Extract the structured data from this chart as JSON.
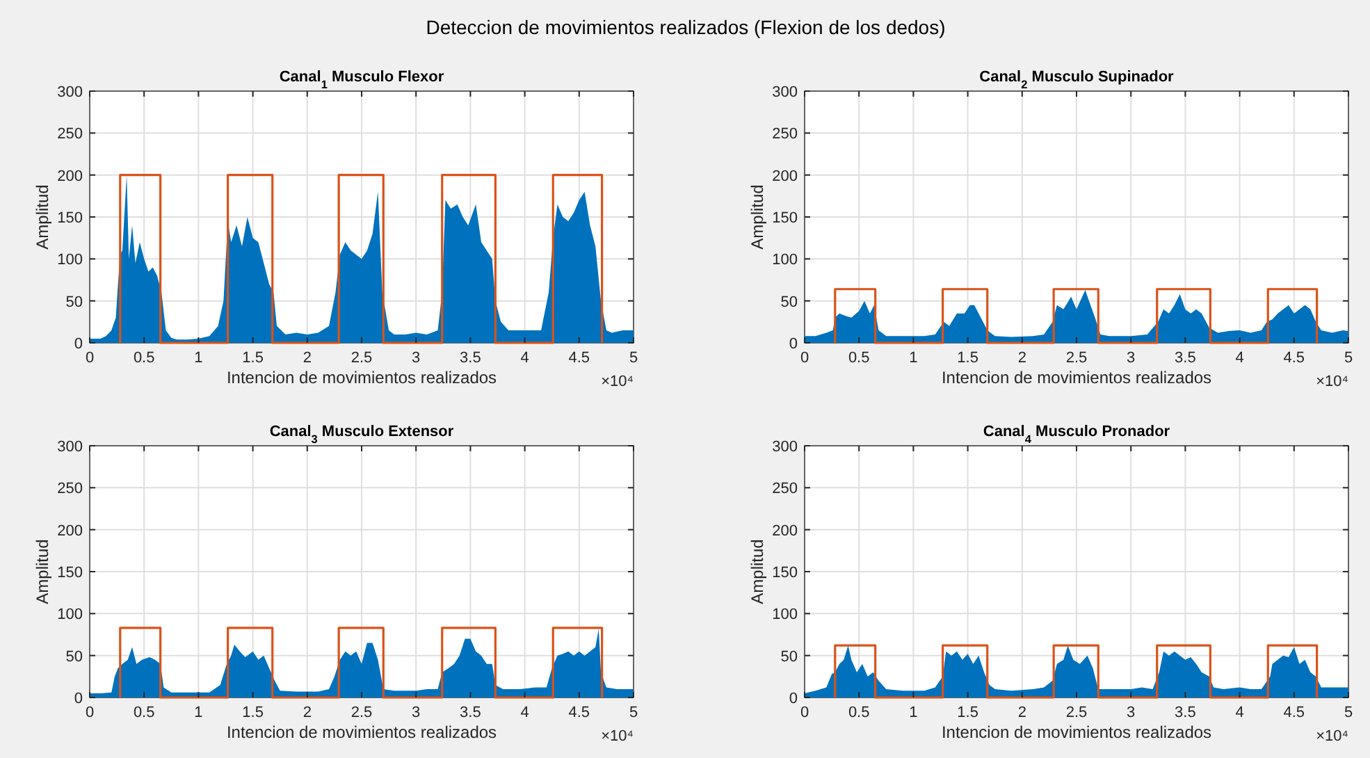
{
  "chart_data": [
    {
      "type": "area",
      "title": "Canal$_{1}$ Musculo Flexor",
      "xlabel": "Intencion de movimientos realizados",
      "ylabel": "Amplitud",
      "annotations": [
        "Deteccion de movimientos realizados (Flexion de los dedos)",
        "×10⁴"
      ],
      "xlim": [
        0,
        5
      ],
      "xticks": [
        0,
        0.5,
        1,
        1.5,
        2,
        2.5,
        3,
        3.5,
        4,
        4.5,
        5
      ],
      "ylim": [
        0,
        300
      ],
      "yticks": [
        0,
        50,
        100,
        150,
        200,
        250,
        300
      ],
      "grid": true,
      "series": [
        {
          "color": "#0072bd",
          "x": [
            0,
            0.1,
            0.15,
            0.2,
            0.24,
            0.26,
            0.28,
            0.3,
            0.34,
            0.36,
            0.39,
            0.42,
            0.46,
            0.5,
            0.54,
            0.58,
            0.62,
            0.66,
            0.7,
            0.75,
            0.8,
            0.9,
            1,
            1.1,
            1.18,
            1.23,
            1.27,
            1.3,
            1.35,
            1.4,
            1.45,
            1.5,
            1.55,
            1.6,
            1.65,
            1.69,
            1.72,
            1.8,
            1.9,
            2,
            2.1,
            2.2,
            2.26,
            2.3,
            2.35,
            2.4,
            2.45,
            2.5,
            2.55,
            2.6,
            2.65,
            2.69,
            2.75,
            2.8,
            2.9,
            3,
            3.1,
            3.2,
            3.24,
            3.27,
            3.32,
            3.38,
            3.43,
            3.48,
            3.55,
            3.6,
            3.65,
            3.7,
            3.73,
            3.78,
            3.85,
            3.95,
            4.05,
            4.15,
            4.22,
            4.26,
            4.3,
            4.35,
            4.4,
            4.45,
            4.5,
            4.55,
            4.6,
            4.65,
            4.7,
            4.75,
            4.8,
            4.9,
            5
          ],
          "values": [
            5,
            5,
            8,
            15,
            30,
            70,
            105,
            110,
            200,
            100,
            140,
            95,
            120,
            100,
            85,
            90,
            80,
            60,
            15,
            6,
            4,
            4,
            5,
            8,
            20,
            50,
            145,
            120,
            140,
            115,
            150,
            125,
            120,
            95,
            70,
            60,
            20,
            10,
            12,
            10,
            12,
            20,
            60,
            105,
            120,
            110,
            105,
            100,
            110,
            130,
            180,
            60,
            15,
            10,
            10,
            12,
            10,
            15,
            60,
            170,
            160,
            165,
            150,
            140,
            165,
            120,
            110,
            100,
            50,
            25,
            15,
            15,
            15,
            15,
            60,
            125,
            165,
            150,
            145,
            155,
            170,
            180,
            140,
            115,
            50,
            15,
            12,
            15,
            15
          ]
        },
        {
          "type": "step",
          "color": "#d95319",
          "x": [
            0.28,
            0.28,
            0.65,
            1.27,
            1.68,
            2.29,
            2.7,
            3.24,
            3.73,
            4.26,
            4.71
          ],
          "values": [
            0,
            200,
            0,
            200,
            0,
            200,
            0,
            200,
            0,
            200,
            0
          ]
        }
      ]
    },
    {
      "type": "area",
      "title": "Canal$_{2}$ Musculo Supinador",
      "xlabel": "Intencion de movimientos realizados",
      "ylabel": "Amplitud",
      "annotations": [
        "×10⁴"
      ],
      "xlim": [
        0,
        5
      ],
      "xticks": [
        0,
        0.5,
        1,
        1.5,
        2,
        2.5,
        3,
        3.5,
        4,
        4.5,
        5
      ],
      "ylim": [
        0,
        300
      ],
      "yticks": [
        0,
        50,
        100,
        150,
        200,
        250,
        300
      ],
      "grid": true,
      "series": [
        {
          "color": "#0072bd",
          "x": [
            0,
            0.1,
            0.2,
            0.26,
            0.28,
            0.32,
            0.38,
            0.43,
            0.5,
            0.55,
            0.6,
            0.64,
            0.68,
            0.75,
            0.9,
            1.1,
            1.2,
            1.28,
            1.33,
            1.4,
            1.47,
            1.52,
            1.56,
            1.62,
            1.68,
            1.75,
            1.9,
            2.1,
            2.2,
            2.28,
            2.32,
            2.38,
            2.45,
            2.5,
            2.58,
            2.62,
            2.67,
            2.72,
            2.8,
            3,
            3.15,
            3.25,
            3.3,
            3.35,
            3.4,
            3.45,
            3.5,
            3.55,
            3.6,
            3.65,
            3.72,
            3.8,
            3.9,
            4,
            4.1,
            4.2,
            4.25,
            4.3,
            4.35,
            4.4,
            4.45,
            4.5,
            4.55,
            4.6,
            4.65,
            4.7,
            4.75,
            4.85,
            4.95,
            5
          ],
          "values": [
            8,
            8,
            12,
            15,
            30,
            35,
            32,
            30,
            38,
            50,
            35,
            45,
            15,
            8,
            8,
            8,
            10,
            25,
            20,
            35,
            35,
            45,
            45,
            30,
            15,
            8,
            7,
            8,
            10,
            25,
            45,
            40,
            55,
            40,
            63,
            48,
            30,
            10,
            8,
            8,
            10,
            25,
            40,
            35,
            45,
            58,
            40,
            35,
            40,
            35,
            18,
            12,
            14,
            15,
            12,
            15,
            25,
            28,
            35,
            40,
            45,
            35,
            40,
            45,
            40,
            25,
            15,
            12,
            15,
            14
          ]
        },
        {
          "type": "step",
          "color": "#d95319",
          "x": [
            0.28,
            0.28,
            0.65,
            1.27,
            1.68,
            2.29,
            2.7,
            3.24,
            3.73,
            4.26,
            4.71
          ],
          "values": [
            0,
            64,
            0,
            64,
            0,
            64,
            0,
            64,
            0,
            64,
            0
          ]
        }
      ]
    },
    {
      "type": "area",
      "title": "Canal$_{3}$ Musculo Extensor",
      "xlabel": "Intencion de movimientos realizados",
      "ylabel": "Amplitud",
      "annotations": [
        "×10⁴"
      ],
      "xlim": [
        0,
        5
      ],
      "xticks": [
        0,
        0.5,
        1,
        1.5,
        2,
        2.5,
        3,
        3.5,
        4,
        4.5,
        5
      ],
      "ylim": [
        0,
        300
      ],
      "yticks": [
        0,
        50,
        100,
        150,
        200,
        250,
        300
      ],
      "grid": true,
      "series": [
        {
          "color": "#0072bd",
          "x": [
            0,
            0.1,
            0.2,
            0.23,
            0.26,
            0.3,
            0.35,
            0.39,
            0.43,
            0.48,
            0.55,
            0.6,
            0.65,
            0.68,
            0.75,
            0.9,
            1.1,
            1.2,
            1.26,
            1.3,
            1.33,
            1.38,
            1.43,
            1.5,
            1.55,
            1.6,
            1.65,
            1.7,
            1.75,
            1.9,
            2.1,
            2.2,
            2.25,
            2.3,
            2.35,
            2.4,
            2.45,
            2.5,
            2.55,
            2.6,
            2.65,
            2.7,
            2.8,
            3,
            3.1,
            3.2,
            3.24,
            3.3,
            3.35,
            3.4,
            3.45,
            3.5,
            3.55,
            3.6,
            3.65,
            3.7,
            3.73,
            3.8,
            3.95,
            4.1,
            4.2,
            4.25,
            4.3,
            4.35,
            4.4,
            4.45,
            4.5,
            4.55,
            4.6,
            4.65,
            4.68,
            4.7,
            4.75,
            4.85,
            5
          ],
          "values": [
            5,
            5,
            6,
            25,
            35,
            40,
            45,
            60,
            40,
            45,
            48,
            45,
            40,
            12,
            6,
            6,
            6,
            15,
            40,
            50,
            63,
            55,
            48,
            55,
            45,
            50,
            35,
            20,
            8,
            7,
            7,
            10,
            25,
            45,
            55,
            50,
            55,
            40,
            65,
            65,
            45,
            10,
            8,
            8,
            10,
            10,
            30,
            35,
            40,
            50,
            70,
            70,
            55,
            50,
            40,
            40,
            15,
            10,
            10,
            12,
            12,
            35,
            50,
            52,
            55,
            50,
            55,
            50,
            55,
            60,
            82,
            30,
            12,
            10,
            10
          ]
        },
        {
          "type": "step",
          "color": "#d95319",
          "x": [
            0.28,
            0.28,
            0.65,
            1.27,
            1.68,
            2.29,
            2.7,
            3.24,
            3.73,
            4.26,
            4.71
          ],
          "values": [
            0,
            83,
            0,
            83,
            0,
            83,
            0,
            83,
            0,
            83,
            0
          ]
        }
      ]
    },
    {
      "type": "area",
      "title": "Canal$_{4}$ Musculo Pronador",
      "xlabel": "Intencion de movimientos realizados",
      "ylabel": "Amplitud",
      "annotations": [
        "×10⁴"
      ],
      "xlim": [
        0,
        5
      ],
      "xticks": [
        0,
        0.5,
        1,
        1.5,
        2,
        2.5,
        3,
        3.5,
        4,
        4.5,
        5
      ],
      "ylim": [
        0,
        300
      ],
      "yticks": [
        0,
        50,
        100,
        150,
        200,
        250,
        300
      ],
      "grid": true,
      "series": [
        {
          "color": "#0072bd",
          "x": [
            0,
            0.1,
            0.2,
            0.25,
            0.28,
            0.32,
            0.36,
            0.4,
            0.43,
            0.48,
            0.53,
            0.58,
            0.63,
            0.68,
            0.75,
            0.9,
            1.1,
            1.2,
            1.27,
            1.3,
            1.35,
            1.4,
            1.45,
            1.5,
            1.55,
            1.6,
            1.65,
            1.7,
            1.75,
            1.9,
            2.1,
            2.2,
            2.28,
            2.32,
            2.38,
            2.42,
            2.47,
            2.53,
            2.6,
            2.65,
            2.7,
            2.8,
            3,
            3.1,
            3.2,
            3.26,
            3.3,
            3.35,
            3.4,
            3.45,
            3.5,
            3.55,
            3.6,
            3.65,
            3.72,
            3.76,
            3.85,
            4,
            4.1,
            4.2,
            4.28,
            4.3,
            4.35,
            4.4,
            4.45,
            4.5,
            4.55,
            4.6,
            4.65,
            4.7,
            4.75,
            4.85,
            5
          ],
          "values": [
            5,
            8,
            12,
            28,
            30,
            40,
            45,
            62,
            45,
            30,
            40,
            25,
            30,
            20,
            10,
            8,
            8,
            12,
            25,
            55,
            50,
            55,
            45,
            52,
            40,
            50,
            30,
            15,
            10,
            8,
            10,
            12,
            20,
            40,
            45,
            62,
            45,
            40,
            50,
            35,
            10,
            10,
            10,
            12,
            10,
            30,
            55,
            50,
            55,
            50,
            45,
            48,
            40,
            30,
            25,
            12,
            10,
            12,
            10,
            10,
            25,
            40,
            45,
            50,
            48,
            60,
            40,
            45,
            30,
            25,
            12,
            12,
            12
          ]
        },
        {
          "type": "step",
          "color": "#d95319",
          "x": [
            0.28,
            0.28,
            0.65,
            1.27,
            1.68,
            2.29,
            2.7,
            3.24,
            3.73,
            4.26,
            4.71
          ],
          "values": [
            0,
            62,
            0,
            62,
            0,
            62,
            0,
            62,
            0,
            62,
            0
          ]
        }
      ]
    }
  ]
}
